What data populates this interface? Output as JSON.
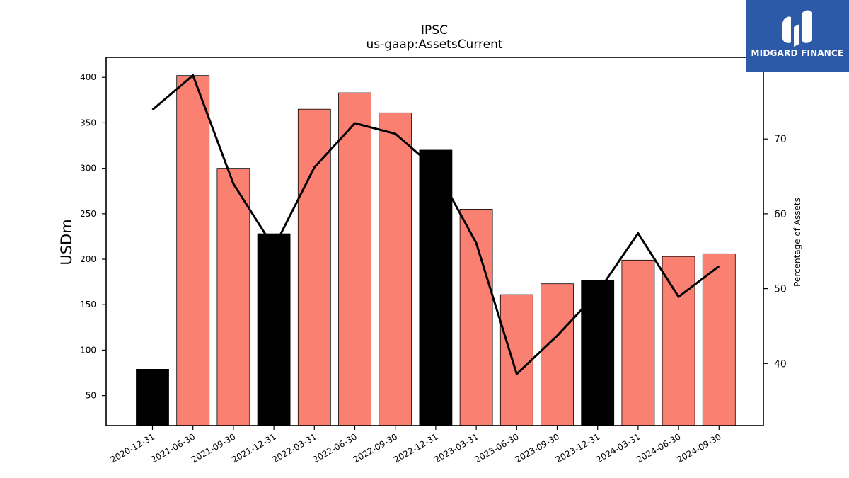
{
  "brand": {
    "name": "MIDGARD FINANCE",
    "color": "#2c5aa8"
  },
  "chart_data": {
    "type": "bar",
    "title": "IPSC",
    "subtitle": "us-gaap:AssetsCurrent",
    "ylabel": "USDm",
    "ylabel_right": "Percentage of Assets",
    "categories": [
      "2020-12-31",
      "2021-06-30",
      "2021-09-30",
      "2021-12-31",
      "2022-03-31",
      "2022-06-30",
      "2022-09-30",
      "2022-12-31",
      "2023-03-31",
      "2023-06-30",
      "2023-09-30",
      "2023-12-31",
      "2024-03-31",
      "2024-06-30",
      "2024-09-30"
    ],
    "series": [
      {
        "type": "bar",
        "axis": "left",
        "values": [
          79,
          402,
          300,
          228,
          365,
          383,
          361,
          320,
          255,
          161,
          173,
          177,
          199,
          203,
          206
        ],
        "colors": [
          "#000000",
          "#fa8072",
          "#fa8072",
          "#000000",
          "#fa8072",
          "#fa8072",
          "#fa8072",
          "#000000",
          "#fa8072",
          "#fa8072",
          "#fa8072",
          "#000000",
          "#fa8072",
          "#fa8072",
          "#fa8072"
        ]
      },
      {
        "type": "line",
        "axis": "right",
        "color": "#000000",
        "values": [
          73.9,
          78.5,
          64.0,
          55.5,
          66.2,
          72.1,
          70.7,
          66.0,
          56.1,
          38.6,
          43.7,
          49.5,
          57.4,
          48.9,
          53.0
        ]
      }
    ],
    "ylim": [
      17,
      422
    ],
    "yticks": [
      50,
      100,
      150,
      200,
      250,
      300,
      350,
      400
    ],
    "ylim_right": [
      31.7,
      80.9
    ],
    "yticks_right": [
      40,
      50,
      60,
      70
    ],
    "grid": false,
    "legend": "none"
  }
}
